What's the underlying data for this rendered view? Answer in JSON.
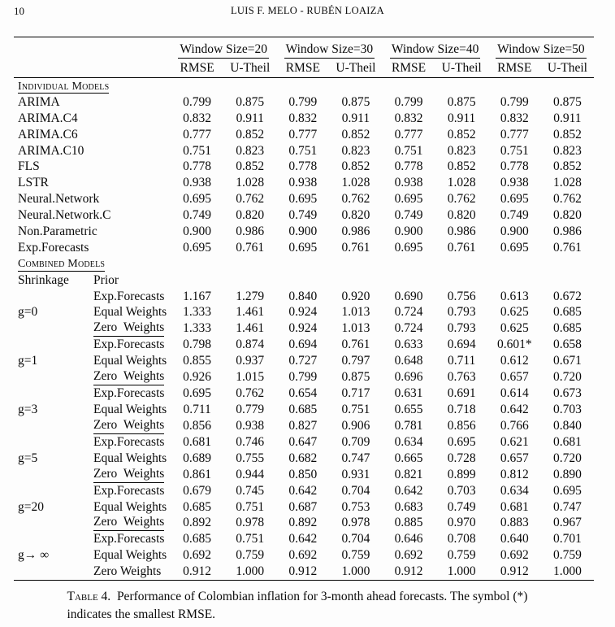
{
  "page": {
    "number": "10",
    "running_head": "LUIS F. MELO - RUBÉN LOAIZA"
  },
  "table": {
    "window_groups": [
      "Window Size=20",
      "Window Size=30",
      "Window Size=40",
      "Window Size=50"
    ],
    "metric_headers": [
      "RMSE",
      "U-Theil"
    ],
    "sections": [
      {
        "title": "Individual Models",
        "type": "simple",
        "rows": [
          {
            "label": "ARIMA",
            "values": [
              "0.799",
              "0.875",
              "0.799",
              "0.875",
              "0.799",
              "0.875",
              "0.799",
              "0.875"
            ]
          },
          {
            "label": "ARIMA.C4",
            "values": [
              "0.832",
              "0.911",
              "0.832",
              "0.911",
              "0.832",
              "0.911",
              "0.832",
              "0.911"
            ]
          },
          {
            "label": "ARIMA.C6",
            "values": [
              "0.777",
              "0.852",
              "0.777",
              "0.852",
              "0.777",
              "0.852",
              "0.777",
              "0.852"
            ]
          },
          {
            "label": "ARIMA.C10",
            "values": [
              "0.751",
              "0.823",
              "0.751",
              "0.823",
              "0.751",
              "0.823",
              "0.751",
              "0.823"
            ]
          },
          {
            "label": "FLS",
            "values": [
              "0.778",
              "0.852",
              "0.778",
              "0.852",
              "0.778",
              "0.852",
              "0.778",
              "0.852"
            ]
          },
          {
            "label": "LSTR",
            "values": [
              "0.938",
              "1.028",
              "0.938",
              "1.028",
              "0.938",
              "1.028",
              "0.938",
              "1.028"
            ]
          },
          {
            "label": "Neural.Network",
            "values": [
              "0.695",
              "0.762",
              "0.695",
              "0.762",
              "0.695",
              "0.762",
              "0.695",
              "0.762"
            ]
          },
          {
            "label": "Neural.Network.C",
            "values": [
              "0.749",
              "0.820",
              "0.749",
              "0.820",
              "0.749",
              "0.820",
              "0.749",
              "0.820"
            ]
          },
          {
            "label": "Non.Parametric",
            "values": [
              "0.900",
              "0.986",
              "0.900",
              "0.986",
              "0.900",
              "0.986",
              "0.900",
              "0.986"
            ]
          },
          {
            "label": "Exp.Forecasts",
            "values": [
              "0.695",
              "0.761",
              "0.695",
              "0.761",
              "0.695",
              "0.761",
              "0.695",
              "0.761"
            ]
          }
        ]
      },
      {
        "title": "Combined Models",
        "type": "grouped",
        "col_labels": [
          "Shrinkage",
          "Prior"
        ],
        "groups": [
          {
            "shrinkage": "g=0",
            "rows": [
              {
                "prior": "Exp.Forecasts",
                "underline": false,
                "values": [
                  "1.167",
                  "1.279",
                  "0.840",
                  "0.920",
                  "0.690",
                  "0.756",
                  "0.613",
                  "0.672"
                ]
              },
              {
                "prior": "Equal Weights",
                "underline": false,
                "values": [
                  "1.333",
                  "1.461",
                  "0.924",
                  "1.013",
                  "0.724",
                  "0.793",
                  "0.625",
                  "0.685"
                ]
              },
              {
                "prior": "Zero Weights",
                "underline": true,
                "values": [
                  "1.333",
                  "1.461",
                  "0.924",
                  "1.013",
                  "0.724",
                  "0.793",
                  "0.625",
                  "0.685"
                ]
              }
            ]
          },
          {
            "shrinkage": "g=1",
            "rows": [
              {
                "prior": "Exp.Forecasts",
                "underline": false,
                "values": [
                  "0.798",
                  "0.874",
                  "0.694",
                  "0.761",
                  "0.633",
                  "0.694",
                  "0.601*",
                  "0.658"
                ]
              },
              {
                "prior": "Equal Weights",
                "underline": false,
                "values": [
                  "0.855",
                  "0.937",
                  "0.727",
                  "0.797",
                  "0.648",
                  "0.711",
                  "0.612",
                  "0.671"
                ]
              },
              {
                "prior": "Zero Weights",
                "underline": true,
                "values": [
                  "0.926",
                  "1.015",
                  "0.799",
                  "0.875",
                  "0.696",
                  "0.763",
                  "0.657",
                  "0.720"
                ]
              }
            ]
          },
          {
            "shrinkage": "g=3",
            "rows": [
              {
                "prior": "Exp.Forecasts",
                "underline": false,
                "values": [
                  "0.695",
                  "0.762",
                  "0.654",
                  "0.717",
                  "0.631",
                  "0.691",
                  "0.614",
                  "0.673"
                ]
              },
              {
                "prior": "Equal Weights",
                "underline": false,
                "values": [
                  "0.711",
                  "0.779",
                  "0.685",
                  "0.751",
                  "0.655",
                  "0.718",
                  "0.642",
                  "0.703"
                ]
              },
              {
                "prior": "Zero Weights",
                "underline": true,
                "values": [
                  "0.856",
                  "0.938",
                  "0.827",
                  "0.906",
                  "0.781",
                  "0.856",
                  "0.766",
                  "0.840"
                ]
              }
            ]
          },
          {
            "shrinkage": "g=5",
            "rows": [
              {
                "prior": "Exp.Forecasts",
                "underline": false,
                "values": [
                  "0.681",
                  "0.746",
                  "0.647",
                  "0.709",
                  "0.634",
                  "0.695",
                  "0.621",
                  "0.681"
                ]
              },
              {
                "prior": "Equal Weights",
                "underline": false,
                "values": [
                  "0.689",
                  "0.755",
                  "0.682",
                  "0.747",
                  "0.665",
                  "0.728",
                  "0.657",
                  "0.720"
                ]
              },
              {
                "prior": "Zero Weights",
                "underline": true,
                "values": [
                  "0.861",
                  "0.944",
                  "0.850",
                  "0.931",
                  "0.821",
                  "0.899",
                  "0.812",
                  "0.890"
                ]
              }
            ]
          },
          {
            "shrinkage": "g=20",
            "rows": [
              {
                "prior": "Exp.Forecasts",
                "underline": false,
                "values": [
                  "0.679",
                  "0.745",
                  "0.642",
                  "0.704",
                  "0.642",
                  "0.703",
                  "0.634",
                  "0.695"
                ]
              },
              {
                "prior": "Equal Weights",
                "underline": false,
                "values": [
                  "0.685",
                  "0.751",
                  "0.687",
                  "0.753",
                  "0.683",
                  "0.749",
                  "0.681",
                  "0.747"
                ]
              },
              {
                "prior": "Zero Weights",
                "underline": true,
                "values": [
                  "0.892",
                  "0.978",
                  "0.892",
                  "0.978",
                  "0.885",
                  "0.970",
                  "0.883",
                  "0.967"
                ]
              }
            ]
          },
          {
            "shrinkage": "g→ ∞",
            "rows": [
              {
                "prior": "Exp.Forecasts",
                "underline": false,
                "values": [
                  "0.685",
                  "0.751",
                  "0.642",
                  "0.704",
                  "0.646",
                  "0.708",
                  "0.640",
                  "0.701"
                ]
              },
              {
                "prior": "Equal Weights",
                "underline": false,
                "values": [
                  "0.692",
                  "0.759",
                  "0.692",
                  "0.759",
                  "0.692",
                  "0.759",
                  "0.692",
                  "0.759"
                ]
              },
              {
                "prior": "Zero Weights",
                "underline": false,
                "values": [
                  "0.912",
                  "1.000",
                  "0.912",
                  "1.000",
                  "0.912",
                  "1.000",
                  "0.912",
                  "1.000"
                ]
              }
            ]
          }
        ]
      }
    ]
  },
  "caption": {
    "label": "Table 4.",
    "text": "Performance of Colombian inflation for 3-month ahead forecasts. The symbol (*) indicates the smallest RMSE."
  }
}
